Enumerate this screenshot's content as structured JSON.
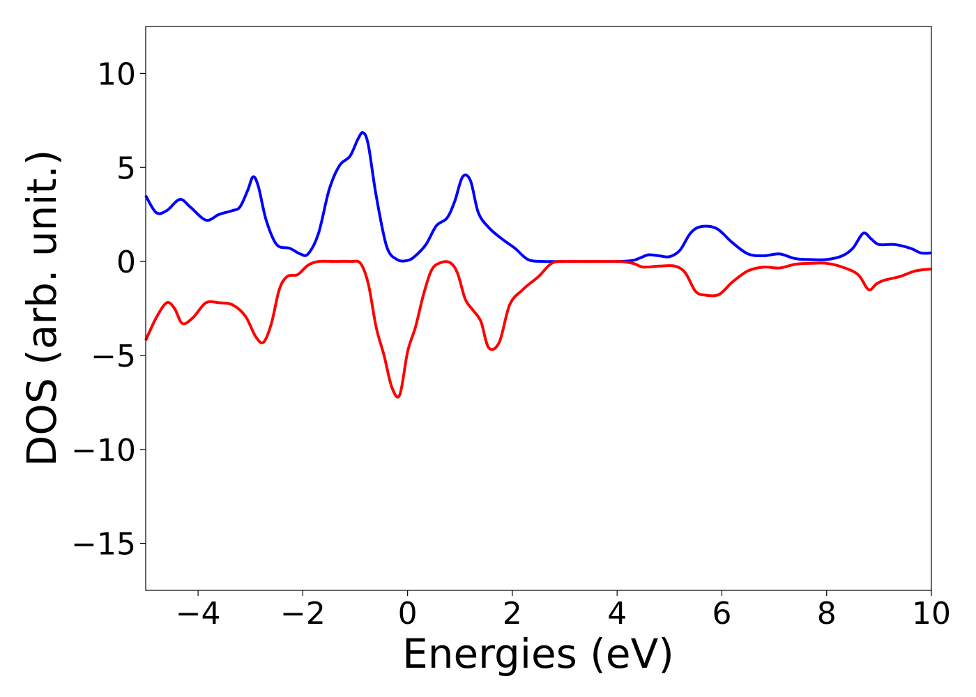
{
  "chart_data": {
    "type": "line",
    "xlabel": "Energies (eV)",
    "ylabel": "DOS (arb. unit.)",
    "xlim": [
      -5,
      10
    ],
    "ylim": [
      -17.5,
      12.5
    ],
    "grid": false,
    "x_ticks": [
      -4,
      -2,
      0,
      2,
      4,
      6,
      8,
      10
    ],
    "x_tick_labels": [
      "−4",
      "−2",
      "0",
      "2",
      "4",
      "6",
      "8",
      "10"
    ],
    "y_ticks": [
      10,
      5,
      0,
      -5,
      -10,
      -15
    ],
    "y_tick_labels": [
      "10",
      "5",
      "0",
      "−5",
      "−10",
      "−15"
    ],
    "series": [
      {
        "color": "#0000ff",
        "x": [
          -5.0,
          -4.8,
          -4.6,
          -4.35,
          -4.15,
          -3.85,
          -3.6,
          -3.35,
          -3.2,
          -3.05,
          -2.95,
          -2.85,
          -2.7,
          -2.5,
          -2.25,
          -2.05,
          -1.9,
          -1.7,
          -1.5,
          -1.3,
          -1.1,
          -0.95,
          -0.85,
          -0.75,
          -0.6,
          -0.4,
          -0.2,
          0.0,
          0.15,
          0.35,
          0.55,
          0.75,
          0.9,
          1.05,
          1.2,
          1.35,
          1.55,
          1.8,
          2.05,
          2.3,
          2.6,
          3.0,
          3.5,
          4.0,
          4.3,
          4.45,
          4.6,
          4.8,
          5.0,
          5.2,
          5.4,
          5.6,
          5.9,
          6.2,
          6.5,
          6.8,
          7.1,
          7.4,
          7.7,
          8.0,
          8.3,
          8.5,
          8.7,
          8.85,
          9.0,
          9.3,
          9.6,
          9.8,
          10.0
        ],
        "y": [
          3.5,
          2.6,
          2.7,
          3.3,
          2.9,
          2.2,
          2.5,
          2.7,
          2.9,
          3.8,
          4.5,
          4.0,
          2.2,
          0.9,
          0.7,
          0.4,
          0.4,
          1.5,
          3.8,
          5.1,
          5.6,
          6.5,
          6.85,
          6.2,
          3.5,
          0.8,
          0.1,
          0.05,
          0.3,
          0.9,
          1.9,
          2.3,
          3.2,
          4.5,
          4.3,
          2.6,
          1.8,
          1.2,
          0.7,
          0.1,
          0.0,
          0.0,
          0.0,
          0.0,
          0.05,
          0.2,
          0.35,
          0.3,
          0.25,
          0.6,
          1.5,
          1.85,
          1.75,
          1.0,
          0.4,
          0.3,
          0.4,
          0.15,
          0.1,
          0.1,
          0.3,
          0.7,
          1.5,
          1.2,
          0.9,
          0.9,
          0.7,
          0.45,
          0.45
        ]
      },
      {
        "color": "#ff0000",
        "x": [
          -5.0,
          -4.8,
          -4.6,
          -4.45,
          -4.3,
          -4.1,
          -3.85,
          -3.6,
          -3.35,
          -3.1,
          -2.9,
          -2.75,
          -2.6,
          -2.45,
          -2.3,
          -2.1,
          -1.9,
          -1.7,
          -1.4,
          -1.1,
          -0.9,
          -0.75,
          -0.6,
          -0.45,
          -0.3,
          -0.15,
          0.0,
          0.15,
          0.3,
          0.45,
          0.6,
          0.8,
          0.95,
          1.1,
          1.25,
          1.4,
          1.55,
          1.75,
          1.95,
          2.2,
          2.5,
          2.75,
          3.0,
          3.5,
          4.0,
          4.3,
          4.5,
          4.8,
          5.1,
          5.3,
          5.5,
          5.7,
          5.95,
          6.2,
          6.5,
          6.8,
          7.1,
          7.4,
          7.7,
          8.0,
          8.3,
          8.6,
          8.8,
          8.95,
          9.1,
          9.4,
          9.7,
          10.0
        ],
        "y": [
          -4.2,
          -3.0,
          -2.2,
          -2.5,
          -3.3,
          -3.0,
          -2.2,
          -2.2,
          -2.3,
          -2.9,
          -4.0,
          -4.3,
          -3.3,
          -1.5,
          -0.8,
          -0.7,
          -0.2,
          0.0,
          0.0,
          0.0,
          -0.1,
          -1.2,
          -3.5,
          -5.0,
          -6.7,
          -7.1,
          -4.8,
          -3.5,
          -1.8,
          -0.5,
          -0.1,
          -0.05,
          -0.6,
          -2.0,
          -2.6,
          -3.2,
          -4.6,
          -4.3,
          -2.3,
          -1.5,
          -0.8,
          -0.1,
          0.0,
          0.0,
          0.0,
          -0.1,
          -0.3,
          -0.25,
          -0.25,
          -0.6,
          -1.6,
          -1.8,
          -1.75,
          -1.1,
          -0.5,
          -0.3,
          -0.35,
          -0.15,
          -0.1,
          -0.1,
          -0.3,
          -0.7,
          -1.5,
          -1.2,
          -1.0,
          -0.8,
          -0.5,
          -0.4
        ]
      }
    ]
  }
}
